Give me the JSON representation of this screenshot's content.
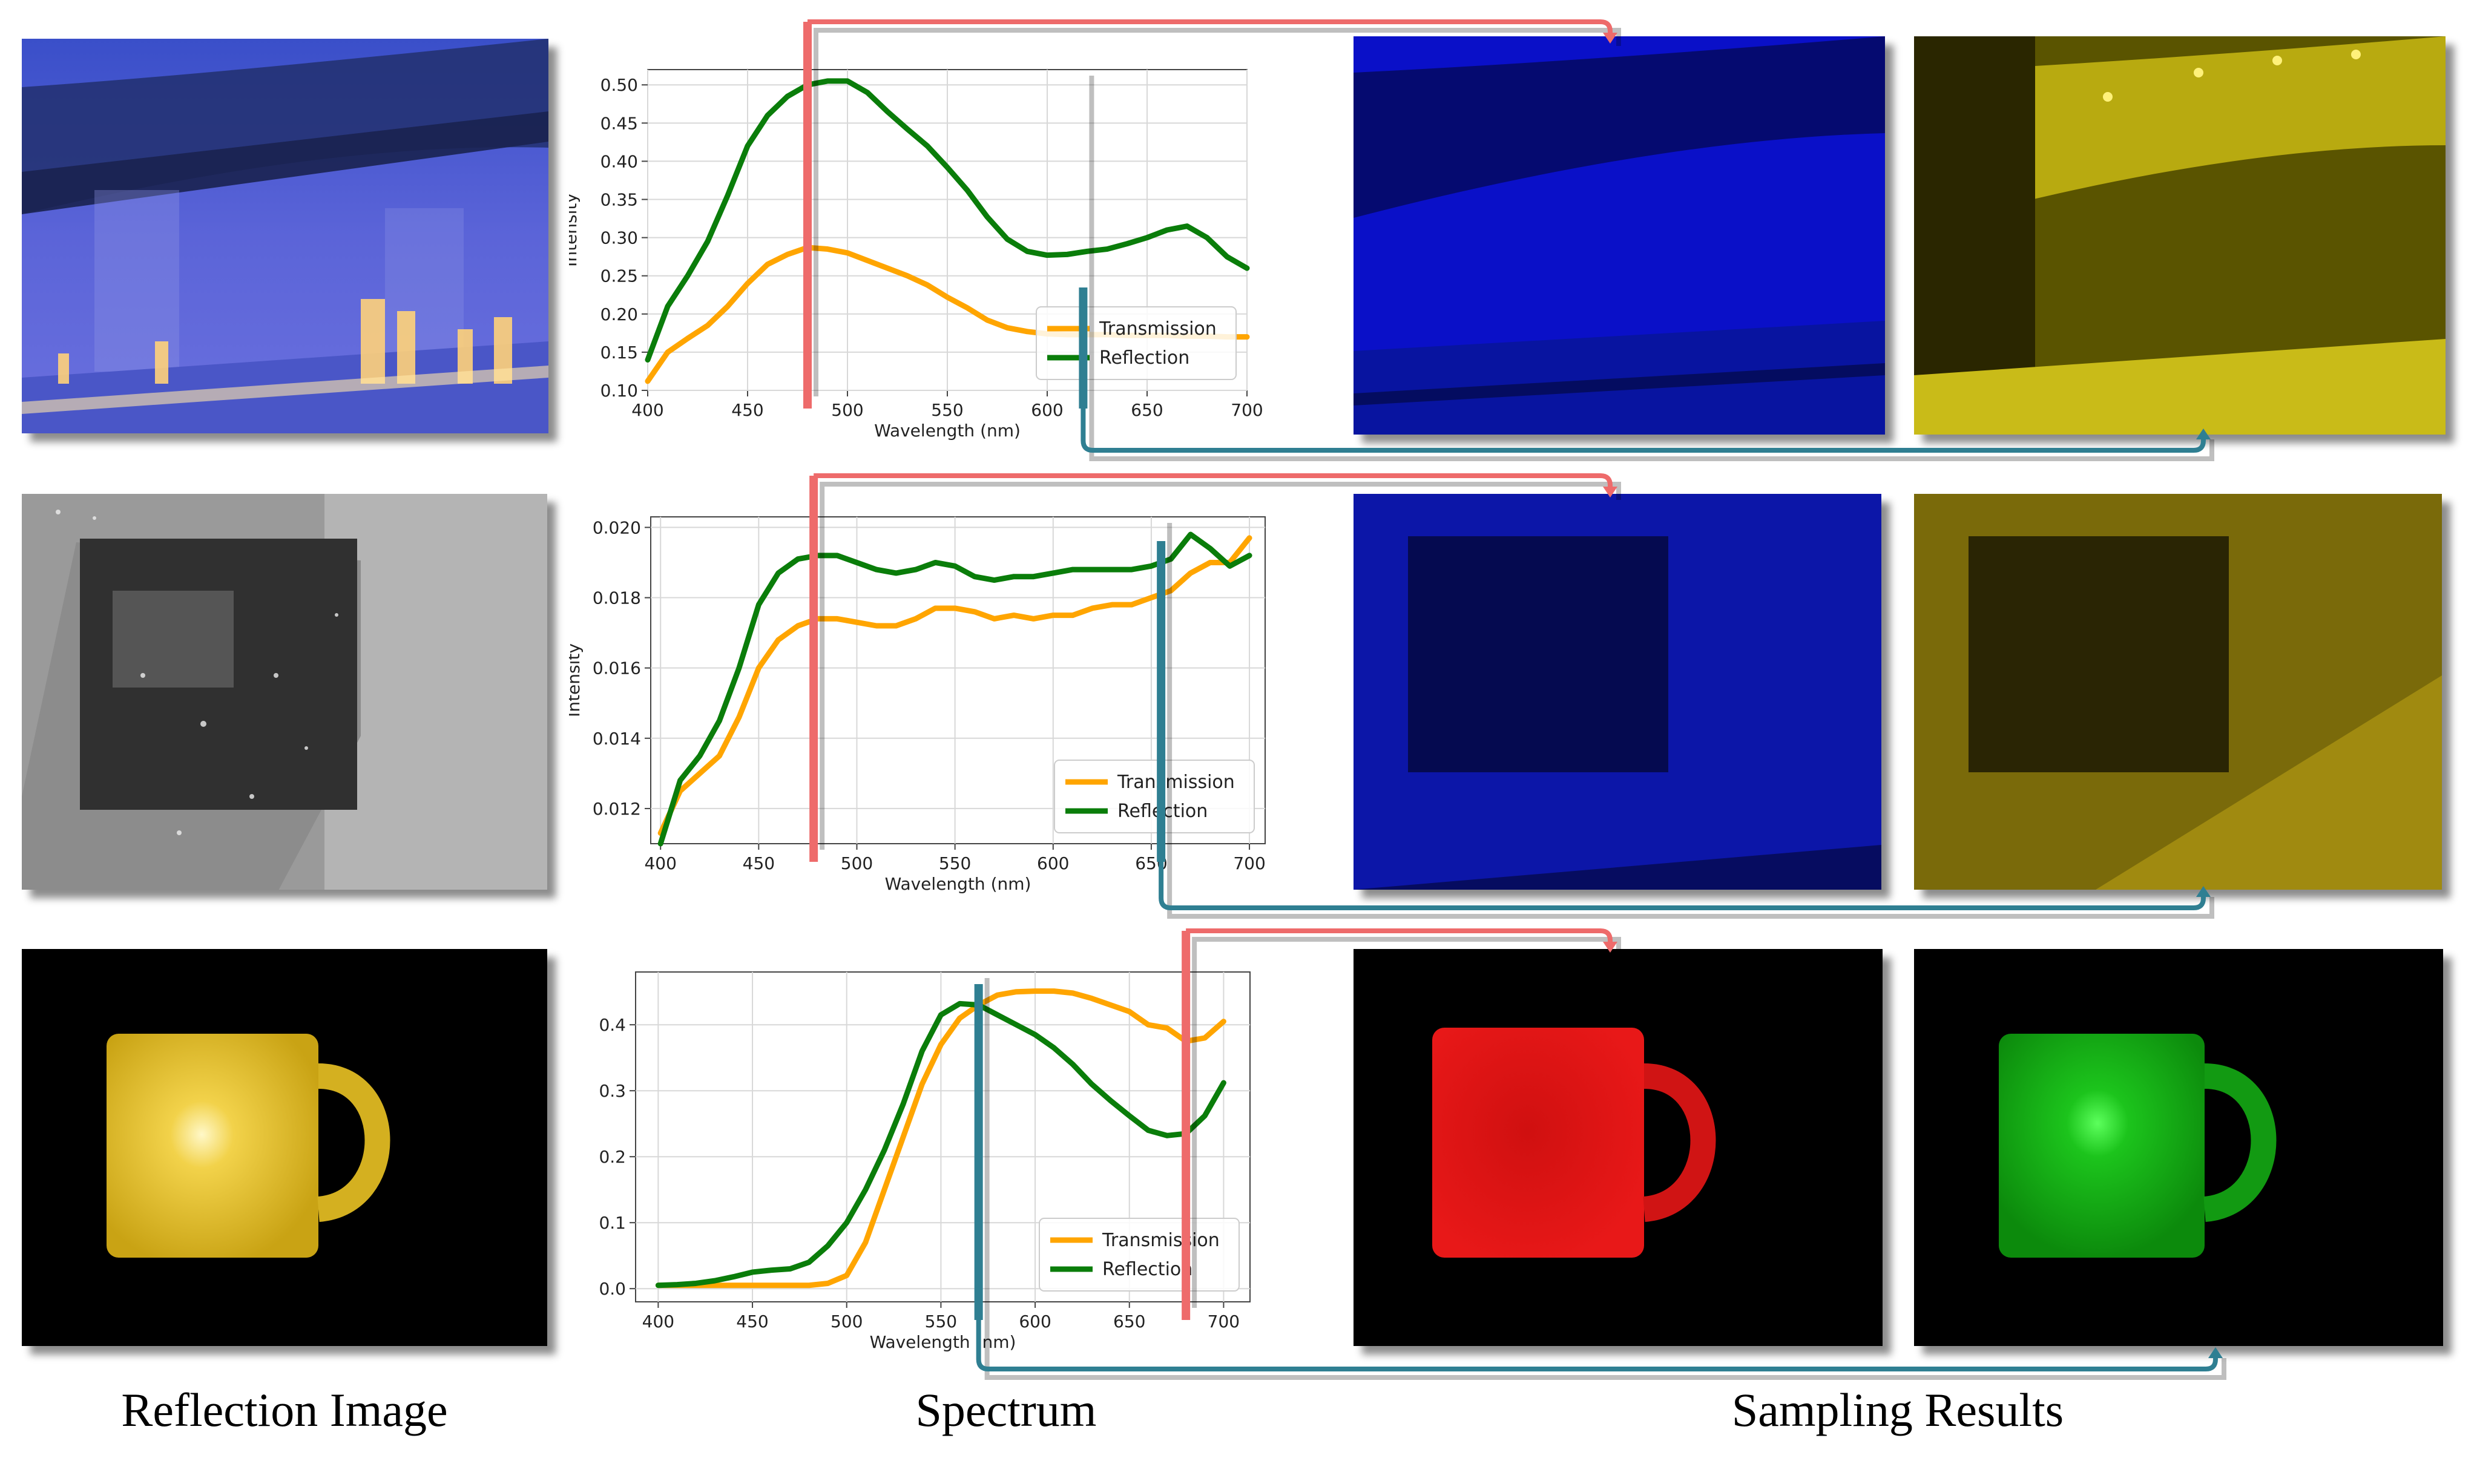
{
  "captions": {
    "reflection": "Reflection Image",
    "spectrum": "Spectrum",
    "sampling": "Sampling Results"
  },
  "colors": {
    "transmission": "#ffa500",
    "reflection": "#0a7d0a",
    "red_marker": "#ee6b6b",
    "teal_marker": "#2f7f92"
  },
  "chart_data": [
    {
      "type": "line",
      "xlabel": "Wavelength (nm)",
      "ylabel": "Intensity",
      "xlim": [
        400,
        700
      ],
      "ylim": [
        0.1,
        0.52
      ],
      "yticks": [
        "0.10",
        "0.15",
        "0.20",
        "0.25",
        "0.30",
        "0.35",
        "0.40",
        "0.45",
        "0.50"
      ],
      "xticks": [
        "400",
        "450",
        "500",
        "550",
        "600",
        "650",
        "700"
      ],
      "grid": true,
      "legend": "bottom-right",
      "x": [
        400,
        410,
        420,
        430,
        440,
        450,
        460,
        470,
        480,
        490,
        500,
        510,
        520,
        530,
        540,
        550,
        560,
        570,
        580,
        590,
        600,
        610,
        620,
        630,
        640,
        650,
        660,
        670,
        680,
        690,
        700
      ],
      "series": [
        {
          "name": "Transmission",
          "values": [
            0.112,
            0.15,
            0.168,
            0.185,
            0.21,
            0.24,
            0.265,
            0.278,
            0.287,
            0.285,
            0.28,
            0.27,
            0.26,
            0.25,
            0.238,
            0.222,
            0.208,
            0.192,
            0.182,
            0.177,
            0.174,
            0.173,
            0.173,
            0.173,
            0.172,
            0.172,
            0.172,
            0.171,
            0.171,
            0.17,
            0.17
          ]
        },
        {
          "name": "Reflection",
          "values": [
            0.14,
            0.21,
            0.25,
            0.295,
            0.355,
            0.42,
            0.46,
            0.485,
            0.5,
            0.505,
            0.505,
            0.49,
            0.465,
            0.442,
            0.42,
            0.392,
            0.362,
            0.327,
            0.298,
            0.282,
            0.277,
            0.278,
            0.282,
            0.285,
            0.292,
            0.3,
            0.31,
            0.315,
            0.3,
            0.275,
            0.26
          ]
        }
      ],
      "markers": {
        "red": 480,
        "teal": 618
      }
    },
    {
      "type": "line",
      "xlabel": "Wavelength (nm)",
      "ylabel": "Intensity",
      "xlim": [
        395,
        708
      ],
      "ylim": [
        0.011,
        0.0203
      ],
      "yticks": [
        "0.012",
        "0.014",
        "0.016",
        "0.018",
        "0.020"
      ],
      "xticks": [
        "400",
        "450",
        "500",
        "550",
        "600",
        "650",
        "700"
      ],
      "grid": true,
      "legend": "bottom-right",
      "x": [
        400,
        410,
        420,
        430,
        440,
        450,
        460,
        470,
        480,
        490,
        500,
        510,
        520,
        530,
        540,
        550,
        560,
        570,
        580,
        590,
        600,
        610,
        620,
        630,
        640,
        650,
        660,
        670,
        680,
        690,
        700
      ],
      "series": [
        {
          "name": "Transmission",
          "values": [
            0.0113,
            0.0125,
            0.013,
            0.0135,
            0.0146,
            0.016,
            0.0168,
            0.0172,
            0.0174,
            0.0174,
            0.0173,
            0.0172,
            0.0172,
            0.0174,
            0.0177,
            0.0177,
            0.0176,
            0.0174,
            0.0175,
            0.0174,
            0.0175,
            0.0175,
            0.0177,
            0.0178,
            0.0178,
            0.018,
            0.0182,
            0.0187,
            0.019,
            0.019,
            0.0197
          ]
        },
        {
          "name": "Reflection",
          "values": [
            0.011,
            0.0128,
            0.0135,
            0.0145,
            0.016,
            0.0178,
            0.0187,
            0.0191,
            0.0192,
            0.0192,
            0.019,
            0.0188,
            0.0187,
            0.0188,
            0.019,
            0.0189,
            0.0186,
            0.0185,
            0.0186,
            0.0186,
            0.0187,
            0.0188,
            0.0188,
            0.0188,
            0.0188,
            0.0189,
            0.0191,
            0.0198,
            0.0194,
            0.0189,
            0.0192
          ]
        }
      ],
      "markers": {
        "red": 478,
        "teal": 655
      }
    },
    {
      "type": "line",
      "xlabel": "Wavelength (nm)",
      "ylabel": "Intensity",
      "xlim": [
        388,
        714
      ],
      "ylim": [
        -0.02,
        0.48
      ],
      "yticks": [
        "0.0",
        "0.1",
        "0.2",
        "0.3",
        "0.4"
      ],
      "xticks": [
        "400",
        "450",
        "500",
        "550",
        "600",
        "650",
        "700"
      ],
      "grid": true,
      "legend": "bottom-right",
      "x": [
        400,
        410,
        420,
        430,
        440,
        450,
        460,
        470,
        480,
        490,
        500,
        510,
        520,
        530,
        540,
        550,
        560,
        570,
        580,
        590,
        600,
        610,
        620,
        630,
        640,
        650,
        660,
        670,
        680,
        690,
        700
      ],
      "series": [
        {
          "name": "Transmission",
          "values": [
            0.005,
            0.005,
            0.005,
            0.005,
            0.005,
            0.005,
            0.005,
            0.005,
            0.005,
            0.008,
            0.02,
            0.07,
            0.15,
            0.23,
            0.31,
            0.37,
            0.41,
            0.43,
            0.445,
            0.45,
            0.451,
            0.451,
            0.448,
            0.44,
            0.43,
            0.42,
            0.4,
            0.395,
            0.375,
            0.38,
            0.405
          ]
        },
        {
          "name": "Reflection",
          "values": [
            0.005,
            0.006,
            0.008,
            0.012,
            0.018,
            0.025,
            0.028,
            0.03,
            0.04,
            0.065,
            0.1,
            0.15,
            0.21,
            0.28,
            0.36,
            0.415,
            0.432,
            0.43,
            0.415,
            0.4,
            0.385,
            0.365,
            0.34,
            0.31,
            0.285,
            0.262,
            0.24,
            0.232,
            0.235,
            0.262,
            0.312
          ]
        }
      ],
      "markers": {
        "red": 680,
        "teal": 570
      }
    }
  ]
}
